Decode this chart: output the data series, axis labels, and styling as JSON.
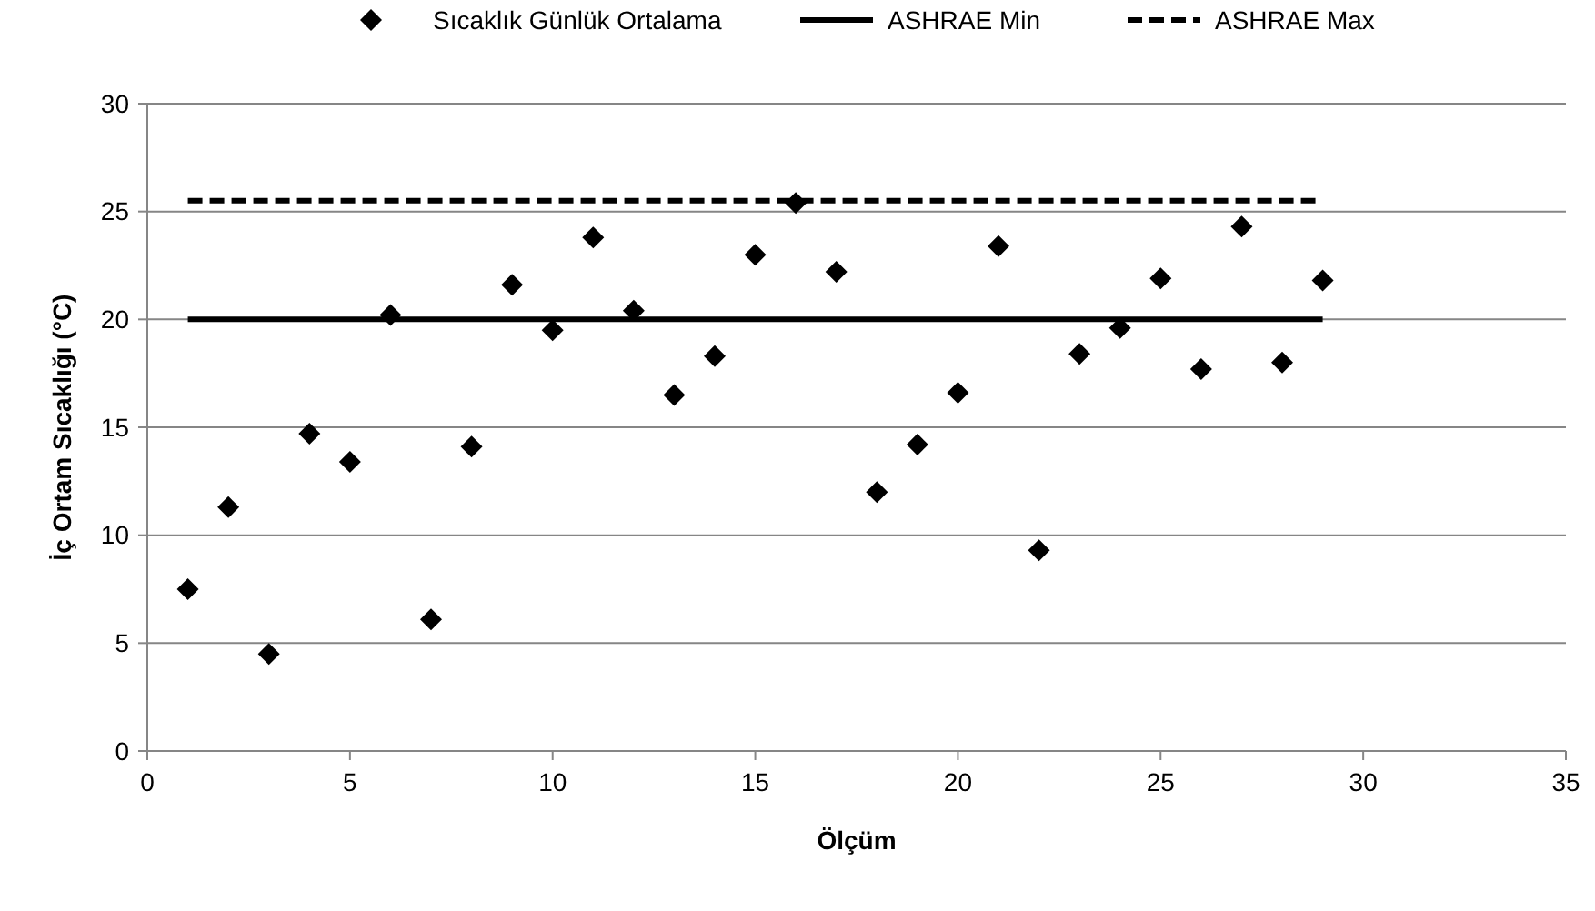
{
  "chart_data": {
    "type": "scatter",
    "xlabel": "Ölçüm",
    "ylabel": "İç Ortam Sıcaklığı (°C)",
    "xlim": [
      0,
      35
    ],
    "xticks": [
      0,
      5,
      10,
      15,
      20,
      25,
      30,
      35
    ],
    "ylim": [
      0,
      30
    ],
    "yticks": [
      0,
      5,
      10,
      15,
      20,
      25,
      30
    ],
    "grid": "y",
    "legend": "top",
    "series": [
      {
        "name": "Sıcaklık Günlük Ortalama",
        "marker": "diamond",
        "color": "#000000",
        "x": [
          1,
          2,
          3,
          4,
          5,
          6,
          7,
          8,
          9,
          10,
          11,
          12,
          13,
          14,
          15,
          16,
          17,
          18,
          19,
          20,
          21,
          22,
          23,
          24,
          25,
          26,
          27,
          28,
          29
        ],
        "values": [
          7.5,
          11.3,
          4.5,
          14.7,
          13.4,
          20.2,
          6.1,
          14.1,
          21.6,
          19.5,
          23.8,
          20.4,
          16.5,
          18.3,
          23.0,
          25.4,
          22.2,
          12.0,
          14.2,
          16.6,
          23.4,
          9.3,
          18.4,
          19.6,
          21.9,
          17.7,
          24.3,
          18.0,
          21.8
        ]
      },
      {
        "name": "ASHRAE Min",
        "type": "line",
        "marker": "none",
        "line_style": "solid",
        "color": "#000000",
        "x": [
          1,
          29
        ],
        "values": [
          20,
          20
        ]
      },
      {
        "name": "ASHRAE Max",
        "type": "line",
        "marker": "none",
        "line_style": "dashed",
        "color": "#000000",
        "x": [
          1,
          29
        ],
        "values": [
          25.5,
          25.5
        ]
      }
    ]
  }
}
